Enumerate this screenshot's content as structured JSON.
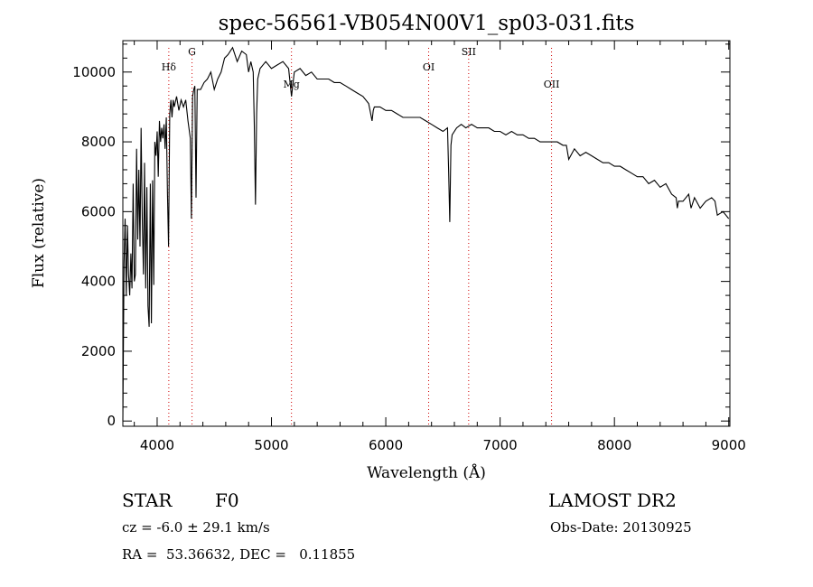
{
  "chart_data": {
    "type": "line",
    "title": "spec-56561-VB054N00V1_sp03-031.fits",
    "xlabel": "Wavelength (Å)",
    "ylabel": "Flux (relative)",
    "xlim": [
      3700,
      9010
    ],
    "ylim": [
      -150,
      10900
    ],
    "xticks": [
      4000,
      5000,
      6000,
      7000,
      8000,
      9000
    ],
    "yticks": [
      0,
      2000,
      4000,
      6000,
      8000,
      10000
    ],
    "grid": false,
    "line_color": "#000000",
    "marker_color": "#d00000",
    "lines": [
      {
        "label": "Hδ",
        "x": 4102
      },
      {
        "label": "G",
        "x": 4305
      },
      {
        "label": "Mg",
        "x": 5175
      },
      {
        "label": "OI",
        "x": 6375
      },
      {
        "label": "SII",
        "x": 6725
      },
      {
        "label": "OII",
        "x": 7450
      }
    ],
    "series": [
      {
        "x": [
          3700,
          3710,
          3720,
          3730,
          3740,
          3750,
          3760,
          3770,
          3780,
          3790,
          3800,
          3810,
          3820,
          3830,
          3840,
          3850,
          3860,
          3870,
          3880,
          3890,
          3900,
          3910,
          3920,
          3930,
          3940,
          3950,
          3960,
          3970,
          3980,
          3990,
          4000,
          4010,
          4020,
          4030,
          4040,
          4050,
          4060,
          4070,
          4080,
          4090,
          4100,
          4110,
          4120,
          4130,
          4140,
          4150,
          4170,
          4190,
          4210,
          4230,
          4250,
          4270,
          4290,
          4300,
          4310,
          4320,
          4330,
          4340,
          4350,
          4380,
          4410,
          4440,
          4470,
          4500,
          4530,
          4560,
          4590,
          4620,
          4660,
          4700,
          4740,
          4780,
          4800,
          4820,
          4840,
          4850,
          4860,
          4870,
          4880,
          4900,
          4950,
          5000,
          5050,
          5100,
          5150,
          5175,
          5200,
          5250,
          5300,
          5350,
          5400,
          5450,
          5500,
          5550,
          5600,
          5650,
          5700,
          5750,
          5800,
          5850,
          5880,
          5890,
          5900,
          5950,
          6000,
          6050,
          6100,
          6150,
          6200,
          6250,
          6300,
          6350,
          6400,
          6450,
          6500,
          6540,
          6550,
          6560,
          6570,
          6580,
          6620,
          6660,
          6700,
          6750,
          6800,
          6850,
          6900,
          6950,
          7000,
          7050,
          7100,
          7150,
          7200,
          7250,
          7300,
          7350,
          7400,
          7450,
          7500,
          7550,
          7580,
          7600,
          7650,
          7700,
          7750,
          7800,
          7850,
          7900,
          7950,
          8000,
          8050,
          8100,
          8150,
          8200,
          8250,
          8300,
          8350,
          8400,
          8450,
          8500,
          8540,
          8550,
          8560,
          8600,
          8650,
          8670,
          8700,
          8750,
          8800,
          8850,
          8880,
          8900,
          8950,
          9000
        ],
        "y": [
          0,
          4500,
          5800,
          3600,
          5600,
          4200,
          3600,
          4800,
          3800,
          6800,
          4000,
          4200,
          7800,
          5200,
          7200,
          5000,
          8400,
          5800,
          4200,
          7400,
          3800,
          6700,
          3300,
          2700,
          6800,
          2800,
          6900,
          3900,
          8000,
          7600,
          8300,
          7000,
          8600,
          8000,
          8400,
          8100,
          8500,
          7800,
          8700,
          6500,
          5000,
          8800,
          9200,
          8700,
          9200,
          9000,
          9300,
          8900,
          9200,
          9000,
          9200,
          8600,
          8100,
          5800,
          9300,
          9500,
          9600,
          6400,
          9500,
          9500,
          9700,
          9800,
          10000,
          9500,
          9800,
          10000,
          10400,
          10500,
          10700,
          10300,
          10600,
          10500,
          10000,
          10300,
          10000,
          8500,
          6200,
          8800,
          9800,
          10100,
          10300,
          10100,
          10200,
          10300,
          10100,
          9300,
          10000,
          10100,
          9900,
          10000,
          9800,
          9800,
          9800,
          9700,
          9700,
          9600,
          9500,
          9400,
          9300,
          9100,
          8600,
          8900,
          9000,
          9000,
          8900,
          8900,
          8800,
          8700,
          8700,
          8700,
          8700,
          8600,
          8500,
          8400,
          8300,
          8400,
          7100,
          5700,
          7900,
          8200,
          8400,
          8500,
          8400,
          8500,
          8400,
          8400,
          8400,
          8300,
          8300,
          8200,
          8300,
          8200,
          8200,
          8100,
          8100,
          8000,
          8000,
          8000,
          8000,
          7900,
          7900,
          7500,
          7800,
          7600,
          7700,
          7600,
          7500,
          7400,
          7400,
          7300,
          7300,
          7200,
          7100,
          7000,
          7000,
          6800,
          6900,
          6700,
          6800,
          6500,
          6400,
          6100,
          6300,
          6300,
          6500,
          6100,
          6400,
          6100,
          6300,
          6400,
          6300,
          5900,
          6000,
          5800
        ]
      }
    ]
  },
  "info": {
    "object_class": "STAR",
    "subclass": "F0",
    "survey": "LAMOST DR2",
    "cz": "cz = -6.0 ± 29.1 km/s",
    "obs_date": "Obs-Date: 20130925",
    "coords": "RA =  53.36632, DEC =   0.11855"
  }
}
